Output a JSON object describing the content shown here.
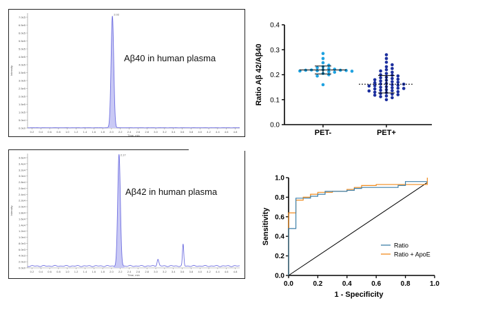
{
  "chart_data": [
    {
      "type": "line",
      "panel": "chromatogram-top",
      "annotation": "Aβ40 in human plasma",
      "peak_label": "2.02",
      "xlabel": "Time, min",
      "ylabel": "Intensity",
      "x_ticks": [
        "0.2",
        "0.4",
        "0.6",
        "0.8",
        "1.0",
        "1.2",
        "1.4",
        "1.6",
        "1.8",
        "2.0",
        "2.2",
        "2.4",
        "2.6",
        "2.8",
        "3.0",
        "3.2",
        "3.4",
        "3.6",
        "3.8",
        "4.0",
        "4.2",
        "4.4",
        "4.6",
        "4.8"
      ],
      "y_ticks": [
        "0.0e0",
        "5.0e4",
        "1.0e5",
        "1.5e5",
        "2.0e5",
        "2.5e5",
        "3.0e5",
        "3.5e5",
        "4.0e5",
        "4.5e5",
        "5.0e5",
        "5.5e5",
        "6.0e5",
        "6.5e5",
        "7.0e5"
      ],
      "xlim": [
        0.1,
        4.9
      ],
      "ylim": [
        0,
        720000
      ],
      "peaks": [
        {
          "x": 2.02,
          "height": 700000,
          "width": 0.03
        }
      ],
      "baseline": 2000,
      "color": "#6f6fe0"
    },
    {
      "type": "line",
      "panel": "chromatogram-bottom",
      "annotation": "Aβ42 in human plasma",
      "peak_label": "2.17",
      "xlabel": "Time, min",
      "ylabel": "Intensity",
      "x_ticks": [
        "0.2",
        "0.4",
        "0.6",
        "0.8",
        "1.0",
        "1.2",
        "1.4",
        "1.6",
        "1.8",
        "2.0",
        "2.2",
        "2.4",
        "2.6",
        "2.8",
        "3.0",
        "3.2",
        "3.4",
        "3.6",
        "3.8",
        "4.0",
        "4.2",
        "4.4",
        "4.6",
        "4.8"
      ],
      "y_ticks": [
        "0.0e0",
        "2.0e3",
        "4.0e3",
        "6.0e3",
        "8.0e3",
        "1.0e4",
        "1.2e4",
        "1.4e4",
        "1.6e4",
        "1.8e4",
        "2.0e4",
        "2.2e4",
        "2.4e4",
        "2.6e4",
        "2.8e4",
        "3.0e4",
        "3.2e4",
        "3.4e4",
        "3.6e4"
      ],
      "xlim": [
        0.1,
        4.9
      ],
      "ylim": [
        0,
        37000
      ],
      "peaks": [
        {
          "x": 2.17,
          "height": 36000,
          "width": 0.03
        },
        {
          "x": 3.05,
          "height": 2200,
          "width": 0.02
        },
        {
          "x": 3.62,
          "height": 7000,
          "width": 0.015
        }
      ],
      "baseline": 600,
      "color": "#6f6fe0"
    },
    {
      "type": "scatter",
      "panel": "ratio-dotplot",
      "ylabel": "Ratio Aβ 42/Aβ40",
      "categories": [
        "PET-",
        "PET+"
      ],
      "ylim": [
        0.0,
        0.4
      ],
      "y_ticks": [
        "0.0",
        "0.1",
        "0.2",
        "0.3",
        "0.4"
      ],
      "series": [
        {
          "category": "PET-",
          "color": "#1fa2e0",
          "mean": 0.219,
          "sd": 0.016,
          "values": [
            0.285,
            0.265,
            0.248,
            0.238,
            0.232,
            0.228,
            0.225,
            0.222,
            0.22,
            0.219,
            0.218,
            0.218,
            0.217,
            0.216,
            0.215,
            0.214,
            0.212,
            0.21,
            0.205,
            0.2,
            0.195,
            0.16
          ]
        },
        {
          "category": "PET+",
          "color": "#1c2f9e",
          "mean": 0.162,
          "sd": 0.035,
          "values": [
            0.28,
            0.265,
            0.25,
            0.24,
            0.232,
            0.225,
            0.22,
            0.215,
            0.21,
            0.205,
            0.2,
            0.198,
            0.195,
            0.19,
            0.188,
            0.185,
            0.182,
            0.18,
            0.178,
            0.175,
            0.172,
            0.17,
            0.168,
            0.165,
            0.163,
            0.162,
            0.16,
            0.158,
            0.156,
            0.155,
            0.152,
            0.15,
            0.148,
            0.146,
            0.145,
            0.143,
            0.14,
            0.138,
            0.136,
            0.135,
            0.132,
            0.13,
            0.128,
            0.125,
            0.122,
            0.12,
            0.118,
            0.115,
            0.112,
            0.108,
            0.1
          ]
        }
      ]
    },
    {
      "type": "line",
      "panel": "roc-curve",
      "xlabel": "1 - Specificity",
      "ylabel": "Sensitivity",
      "xlim": [
        0.0,
        1.0
      ],
      "ylim": [
        0.0,
        1.0
      ],
      "x_ticks": [
        "0.0",
        "0.2",
        "0.4",
        "0.6",
        "0.8",
        "1.0"
      ],
      "y_ticks": [
        "0.0",
        "0.2",
        "0.4",
        "0.6",
        "0.8",
        "1.0"
      ],
      "legend": "bottom-right",
      "series": [
        {
          "name": "Ratio",
          "color": "#3d7fa8",
          "x": [
            0.0,
            0.0,
            0.05,
            0.05,
            0.1,
            0.1,
            0.15,
            0.15,
            0.2,
            0.2,
            0.25,
            0.25,
            0.3,
            0.3,
            0.4,
            0.4,
            0.45,
            0.45,
            0.5,
            0.5,
            0.75,
            0.75,
            0.8,
            0.8,
            0.95,
            0.95
          ],
          "y": [
            0.0,
            0.48,
            0.48,
            0.79,
            0.79,
            0.79,
            0.79,
            0.81,
            0.81,
            0.83,
            0.83,
            0.86,
            0.86,
            0.86,
            0.86,
            0.87,
            0.87,
            0.89,
            0.89,
            0.9,
            0.9,
            0.92,
            0.92,
            0.96,
            0.96,
            0.96
          ]
        },
        {
          "name": "Ratio + ApoE",
          "color": "#f08a1c",
          "x": [
            0.0,
            0.0,
            0.05,
            0.05,
            0.1,
            0.1,
            0.15,
            0.15,
            0.2,
            0.2,
            0.3,
            0.3,
            0.4,
            0.4,
            0.45,
            0.45,
            0.5,
            0.5,
            0.6,
            0.6,
            0.95,
            0.95
          ],
          "y": [
            0.0,
            0.64,
            0.64,
            0.77,
            0.77,
            0.8,
            0.8,
            0.83,
            0.83,
            0.85,
            0.85,
            0.86,
            0.86,
            0.88,
            0.88,
            0.9,
            0.9,
            0.92,
            0.92,
            0.93,
            0.93,
            1.0
          ]
        },
        {
          "name": "",
          "color": "#000000",
          "x": [
            0.0,
            0.95
          ],
          "y": [
            0.0,
            0.95
          ]
        }
      ]
    }
  ]
}
